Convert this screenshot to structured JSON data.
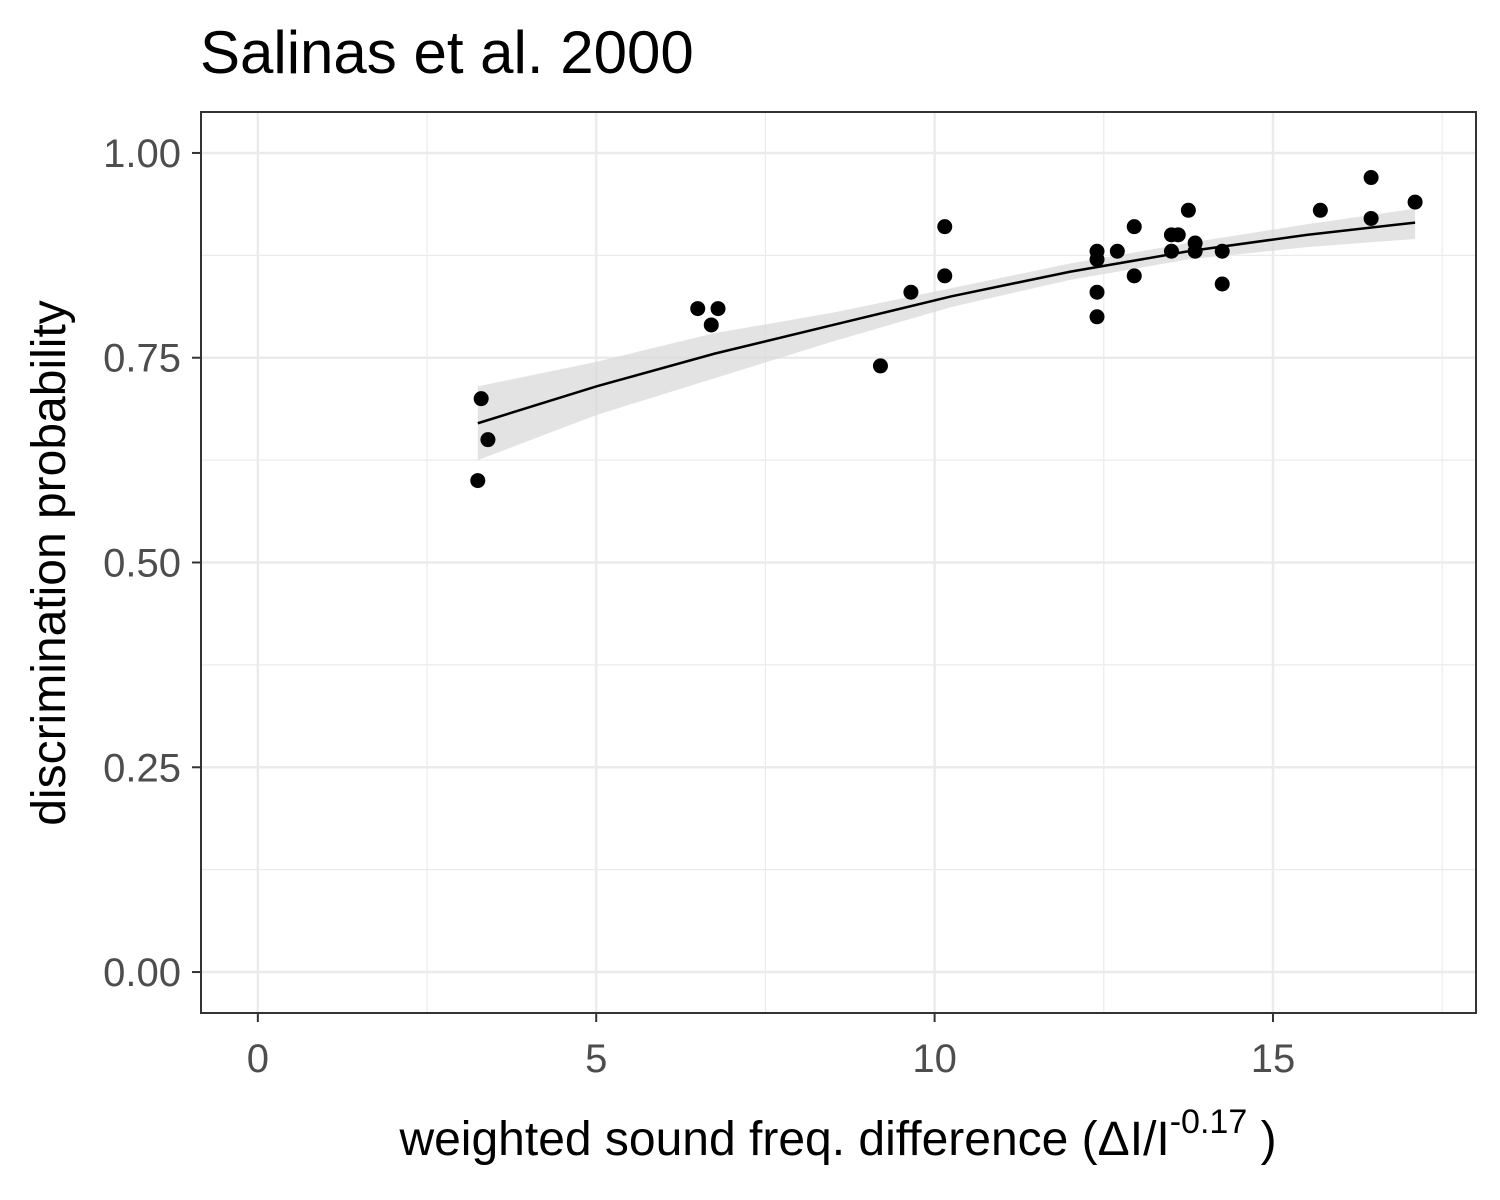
{
  "chart_data": {
    "type": "scatter",
    "title": "Salinas et al. 2000",
    "xlabel_main": "weighted  sound freq.  difference (ΔI/I",
    "xlabel_sup": "-0.17",
    "xlabel_close": " )",
    "ylabel": "discrimination probability",
    "xlim": [
      -0.84,
      18
    ],
    "ylim": [
      -0.05,
      1.05
    ],
    "x_ticks": [
      0,
      5,
      10,
      15
    ],
    "x_tick_labels": [
      "0",
      "5",
      "10",
      "15"
    ],
    "y_ticks": [
      0,
      0.25,
      0.5,
      0.75,
      1.0
    ],
    "y_tick_labels": [
      "0.00",
      "0.25",
      "0.50",
      "0.75",
      "1.00"
    ],
    "x_minor": [
      2.5,
      7.5,
      12.5,
      17.5
    ],
    "y_minor": [
      0.125,
      0.375,
      0.625,
      0.875
    ],
    "grid": true,
    "points": [
      {
        "x": 3.25,
        "y": 0.6
      },
      {
        "x": 3.3,
        "y": 0.7
      },
      {
        "x": 3.4,
        "y": 0.65
      },
      {
        "x": 6.5,
        "y": 0.81
      },
      {
        "x": 6.7,
        "y": 0.79
      },
      {
        "x": 6.8,
        "y": 0.81
      },
      {
        "x": 9.2,
        "y": 0.74
      },
      {
        "x": 9.65,
        "y": 0.83
      },
      {
        "x": 10.15,
        "y": 0.91
      },
      {
        "x": 10.15,
        "y": 0.85
      },
      {
        "x": 12.4,
        "y": 0.88
      },
      {
        "x": 12.4,
        "y": 0.87
      },
      {
        "x": 12.4,
        "y": 0.83
      },
      {
        "x": 12.4,
        "y": 0.8
      },
      {
        "x": 12.7,
        "y": 0.88
      },
      {
        "x": 12.95,
        "y": 0.91
      },
      {
        "x": 12.95,
        "y": 0.85
      },
      {
        "x": 13.5,
        "y": 0.9
      },
      {
        "x": 13.5,
        "y": 0.88
      },
      {
        "x": 13.6,
        "y": 0.9
      },
      {
        "x": 13.75,
        "y": 0.93
      },
      {
        "x": 13.85,
        "y": 0.89
      },
      {
        "x": 13.85,
        "y": 0.88
      },
      {
        "x": 14.25,
        "y": 0.88
      },
      {
        "x": 14.25,
        "y": 0.84
      },
      {
        "x": 15.7,
        "y": 0.93
      },
      {
        "x": 16.45,
        "y": 0.97
      },
      {
        "x": 16.45,
        "y": 0.92
      },
      {
        "x": 17.1,
        "y": 0.94
      }
    ],
    "fit": {
      "x": [
        3.25,
        5.0,
        6.75,
        8.5,
        10.25,
        12.0,
        13.75,
        15.5,
        17.1
      ],
      "y": [
        0.67,
        0.715,
        0.755,
        0.79,
        0.825,
        0.855,
        0.88,
        0.9,
        0.915
      ],
      "lower": [
        0.625,
        0.68,
        0.725,
        0.77,
        0.812,
        0.845,
        0.87,
        0.885,
        0.895
      ],
      "upper": [
        0.715,
        0.745,
        0.78,
        0.805,
        0.835,
        0.865,
        0.89,
        0.913,
        0.932
      ]
    },
    "colors": {
      "points": "#000000",
      "fit_line": "#000000",
      "ribbon": "#d9d9d9",
      "grid": "#ebebeb",
      "panel_border": "#333333",
      "tick_label": "#4d4d4d"
    }
  }
}
